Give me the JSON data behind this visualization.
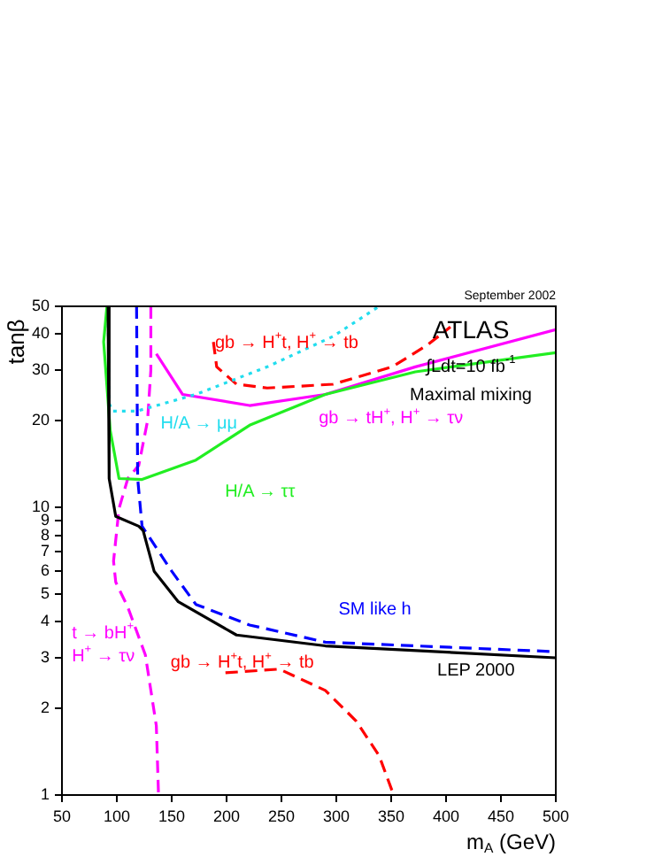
{
  "chart_data": {
    "type": "line",
    "subtitle": "September 2002",
    "xlabel": "m$_{A}$ (GeV)",
    "ylabel": "tanβ",
    "xlim": [
      50,
      500
    ],
    "xticks": [
      50,
      100,
      150,
      200,
      250,
      300,
      350,
      400,
      450,
      500
    ],
    "ylim": [
      1,
      50
    ],
    "yticks": [
      1,
      2,
      3,
      4,
      5,
      6,
      7,
      8,
      9,
      10,
      20,
      30,
      40,
      50
    ],
    "log": "y",
    "grid": false,
    "legend": false,
    "marker": "none",
    "annotations": [
      "ATLAS",
      "∫Ldt=10 fb$^{-1}$",
      "Maximal mixing"
    ],
    "series": [
      {
        "name": "LEP 2000",
        "color": "#000000",
        "line_style": "solid",
        "x": [
          92,
          93,
          99,
          120,
          124,
          134,
          156,
          209,
          290,
          500
        ],
        "values": [
          50,
          12.6,
          9.3,
          8.6,
          8.3,
          6.0,
          4.7,
          3.6,
          3.3,
          3.0
        ]
      },
      {
        "name": "SM like h",
        "color": "#0000ff",
        "line_style": "dashed",
        "x": [
          118,
          119,
          123,
          150,
          172,
          221,
          290,
          500
        ],
        "values": [
          50,
          12.6,
          8.6,
          6.0,
          4.6,
          3.9,
          3.4,
          3.15
        ]
      },
      {
        "name": "H/A → ττ",
        "color": "#22ee22",
        "line_style": "solid",
        "x": [
          91,
          88,
          94,
          102,
          123,
          172,
          221,
          290,
          372,
          500
        ],
        "values": [
          50,
          37.6,
          18.5,
          12.6,
          12.5,
          14.6,
          19.3,
          24.7,
          29.6,
          34.5
        ]
      },
      {
        "name": "H/A → μμ",
        "color": "#22ddee",
        "line_style": "dotted",
        "x": [
          92,
          93,
          96,
          118,
          172,
          237,
          297,
          339
        ],
        "values": [
          50,
          23,
          21.6,
          21.6,
          24.7,
          30.8,
          39.3,
          50
        ]
      },
      {
        "name": "gb → tH$^{+}$, H$^{+}$ → τν",
        "color": "#ff00ff",
        "line_style": "solid",
        "x": [
          136,
          160,
          221,
          290,
          372,
          500
        ],
        "values": [
          34.2,
          24.7,
          22.6,
          24.7,
          30.8,
          41.5
        ]
      },
      {
        "name": "t → bH$^{+}$\nH$^{+}$ → τν",
        "color": "#ff00ff",
        "line_style": "dashed",
        "x": [
          131,
          131,
          128,
          120,
          110,
          102,
          97,
          99,
          110,
          126,
          136,
          138
        ],
        "values": [
          50,
          30,
          20,
          14,
          12.6,
          9.9,
          6.5,
          5.5,
          4.5,
          3.07,
          1.74,
          1.0
        ]
      },
      {
        "name": "gb → H$^{+}$t, H$^{+}$ → tb",
        "color": "#ff0000",
        "line_style": "dashed",
        "x": [
          188,
          191,
          209,
          237,
          297,
          351,
          383,
          404
        ],
        "values": [
          37.6,
          30.8,
          26.8,
          26.0,
          26.8,
          30.8,
          36.7,
          42.4
        ]
      },
      {
        "name": "gb → H$^{+}$t, H$^{+}$ → tb",
        "color": "#ff0000",
        "line_style": "dashed",
        "x": [
          199,
          248,
          290,
          318,
          339,
          351
        ],
        "values": [
          2.66,
          2.74,
          2.31,
          1.81,
          1.37,
          1.03
        ]
      }
    ]
  }
}
